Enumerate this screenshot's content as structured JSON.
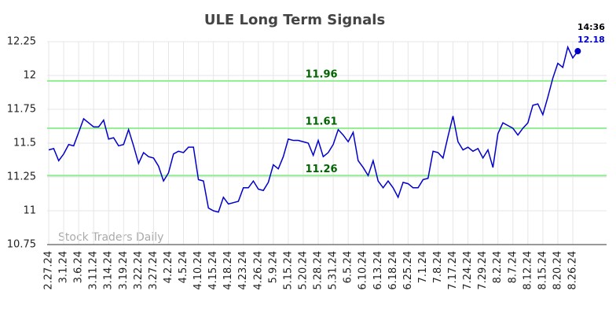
{
  "chart_data": {
    "type": "line",
    "title": "ULE Long Term Signals",
    "watermark": "Stock Traders Daily",
    "annotation": "14:36",
    "categories": [
      "2.27.24",
      null,
      null,
      "3.1.24",
      null,
      null,
      "3.6.24",
      null,
      null,
      "3.11.24",
      null,
      null,
      "3.14.24",
      null,
      null,
      "3.19.24",
      null,
      null,
      "3.22.24",
      null,
      null,
      "3.27.24",
      null,
      null,
      "4.2.24",
      null,
      null,
      "4.5.24",
      null,
      null,
      "4.10.24",
      null,
      null,
      "4.15.24",
      null,
      null,
      "4.18.24",
      null,
      null,
      "4.23.24",
      null,
      null,
      "4.26.24",
      null,
      null,
      "5.9.24",
      null,
      null,
      "5.15.24",
      null,
      null,
      "5.20.24",
      null,
      null,
      "5.28.24",
      null,
      null,
      "5.31.24",
      null,
      null,
      "6.5.24",
      null,
      null,
      "6.10.24",
      null,
      null,
      "6.13.24",
      null,
      null,
      "6.18.24",
      null,
      null,
      "6.25.24",
      null,
      null,
      "7.1.24",
      null,
      null,
      "7.8.24",
      null,
      null,
      "7.17.24",
      null,
      null,
      "7.24.24",
      null,
      null,
      "7.29.24",
      null,
      null,
      "8.2.24",
      null,
      null,
      "8.7.24",
      null,
      null,
      "8.12.24",
      null,
      null,
      "8.15.24",
      null,
      null,
      "8.20.24",
      null,
      null,
      "8.26.24",
      null
    ],
    "series": [
      {
        "color": "#0000cc",
        "values": [
          11.45,
          11.46,
          11.37,
          11.42,
          11.49,
          11.48,
          11.58,
          11.68,
          11.65,
          11.62,
          11.62,
          11.67,
          11.53,
          11.54,
          11.48,
          11.49,
          11.6,
          11.48,
          11.35,
          11.43,
          11.4,
          11.39,
          11.33,
          11.22,
          11.28,
          11.42,
          11.44,
          11.43,
          11.47,
          11.47,
          11.23,
          11.22,
          11.02,
          11.0,
          10.99,
          11.1,
          11.05,
          11.06,
          11.07,
          11.17,
          11.17,
          11.22,
          11.16,
          11.15,
          11.21,
          11.34,
          11.31,
          11.4,
          11.53,
          11.52,
          11.52,
          11.51,
          11.5,
          11.41,
          11.52,
          11.4,
          11.43,
          11.49,
          11.6,
          11.56,
          11.51,
          11.58,
          11.37,
          11.32,
          11.26,
          11.37,
          11.22,
          11.17,
          11.22,
          11.17,
          11.1,
          11.21,
          11.2,
          11.17,
          11.17,
          11.23,
          11.24,
          11.44,
          11.43,
          11.39,
          11.55,
          11.7,
          11.51,
          11.45,
          11.47,
          11.44,
          11.46,
          11.39,
          11.45,
          11.32,
          11.57,
          11.65,
          11.63,
          11.61,
          11.56,
          11.61,
          11.65,
          11.78,
          11.79,
          11.71,
          11.84,
          11.98,
          12.09,
          12.06,
          12.21,
          12.13,
          12.18
        ]
      }
    ],
    "levels": [
      11.96,
      11.61,
      11.26
    ],
    "level_color": "#90ee90",
    "level_label_color": "#006400",
    "ylim": [
      10.75,
      12.25
    ],
    "yticks": [
      10.75,
      11,
      11.25,
      11.5,
      11.75,
      12,
      12.25
    ],
    "grid": true
  }
}
